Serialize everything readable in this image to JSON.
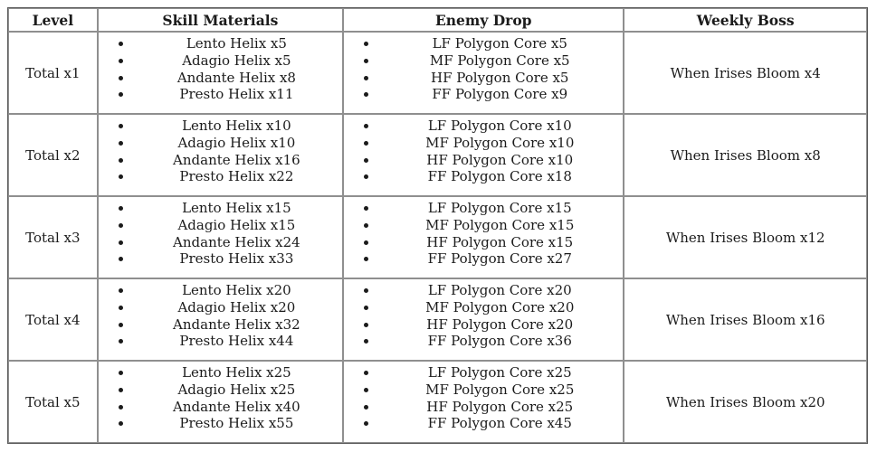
{
  "colors": {
    "background": "#ffffff",
    "text": "#1b1b1b",
    "outer_border": "#5a5a5a",
    "inner_border": "#8f8f8f"
  },
  "table": {
    "headers": [
      "Level",
      "Skill Materials",
      "Enemy Drop",
      "Weekly Boss"
    ],
    "rows": [
      {
        "level": "Total x1",
        "skill_materials": [
          "Lento Helix x5",
          "Adagio Helix x5",
          "Andante Helix x8",
          "Presto Helix x11"
        ],
        "enemy_drop": [
          "LF Polygon Core x5",
          "MF Polygon Core x5",
          "HF Polygon Core x5",
          "FF Polygon Core x9"
        ],
        "weekly_boss": "When Irises Bloom x4"
      },
      {
        "level": "Total x2",
        "skill_materials": [
          "Lento Helix x10",
          "Adagio Helix x10",
          "Andante Helix x16",
          "Presto Helix x22"
        ],
        "enemy_drop": [
          "LF Polygon Core x10",
          "MF Polygon Core x10",
          "HF Polygon Core x10",
          "FF Polygon Core x18"
        ],
        "weekly_boss": "When Irises Bloom x8"
      },
      {
        "level": "Total x3",
        "skill_materials": [
          "Lento Helix x15",
          "Adagio Helix x15",
          "Andante Helix x24",
          "Presto Helix x33"
        ],
        "enemy_drop": [
          "LF Polygon Core x15",
          "MF Polygon Core x15",
          "HF Polygon Core x15",
          "FF Polygon Core x27"
        ],
        "weekly_boss": "When Irises Bloom x12"
      },
      {
        "level": "Total x4",
        "skill_materials": [
          "Lento Helix x20",
          "Adagio Helix x20",
          "Andante Helix x32",
          "Presto Helix x44"
        ],
        "enemy_drop": [
          "LF Polygon Core x20",
          "MF Polygon Core x20",
          "HF Polygon Core x20",
          "FF Polygon Core x36"
        ],
        "weekly_boss": "When Irises Bloom x16"
      },
      {
        "level": "Total x5",
        "skill_materials": [
          "Lento Helix x25",
          "Adagio Helix x25",
          "Andante Helix x40",
          "Presto Helix x55"
        ],
        "enemy_drop": [
          "LF Polygon Core x25",
          "MF Polygon Core x25",
          "HF Polygon Core x25",
          "FF Polygon Core x45"
        ],
        "weekly_boss": "When Irises Bloom x20"
      }
    ]
  }
}
